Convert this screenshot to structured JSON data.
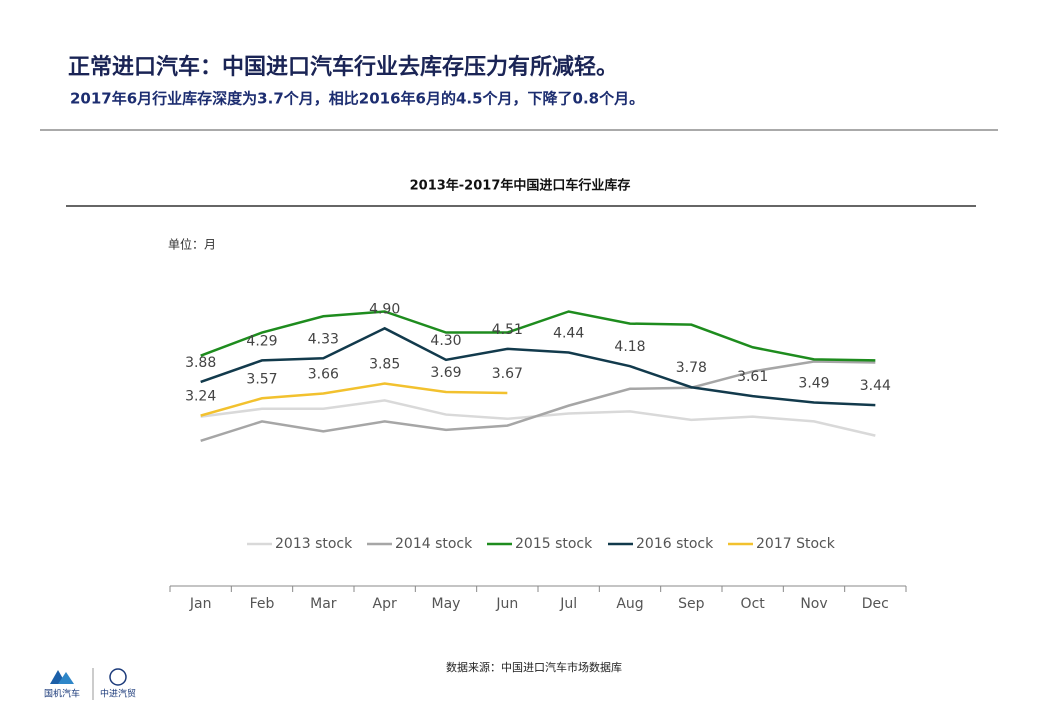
{
  "header": {
    "title": "正常进口汽车：中国进口汽车行业去库存压力有所减轻。",
    "subtitle": "2017年6月行业库存深度为3.7个月，相比2016年6月的4.5个月，下降了0.8个月。"
  },
  "chart_data": {
    "type": "line",
    "title": "2013年-2017年中国进口车行业库存",
    "unit_label": "单位：月",
    "categories": [
      "Jan",
      "Feb",
      "Mar",
      "Apr",
      "May",
      "Jun",
      "Jul",
      "Aug",
      "Sep",
      "Oct",
      "Nov",
      "Dec"
    ],
    "ylim": [
      0,
      5.8
    ],
    "grid": false,
    "legend": "bottom",
    "series": [
      {
        "name": "2013 stock",
        "color": "#d9d9d9",
        "values": [
          3.22,
          3.37,
          3.37,
          3.53,
          3.26,
          3.18,
          3.28,
          3.32,
          3.16,
          3.22,
          3.13,
          2.86
        ]
      },
      {
        "name": "2014 stock",
        "color": "#a6a6a6",
        "values": [
          2.76,
          3.13,
          2.94,
          3.13,
          2.97,
          3.05,
          3.43,
          3.75,
          3.77,
          4.08,
          4.27,
          4.25
        ]
      },
      {
        "name": "2015 stock",
        "color": "#1e8c1e",
        "values": [
          4.38,
          4.82,
          5.13,
          5.22,
          4.82,
          4.82,
          5.22,
          4.99,
          4.97,
          4.54,
          4.31,
          4.29
        ]
      },
      {
        "name": "2016 stock",
        "color": "#123a4c",
        "values": [
          3.88,
          4.29,
          4.33,
          4.9,
          4.3,
          4.51,
          4.44,
          4.18,
          3.78,
          3.61,
          3.49,
          3.44
        ],
        "value_labels": [
          "3.88",
          "4.29",
          "4.33",
          "4.90",
          "4.30",
          "4.51",
          "4.44",
          "4.18",
          "3.78",
          "3.61",
          "3.49",
          "3.44"
        ]
      },
      {
        "name": "2017 Stock",
        "color": "#f2c12e",
        "values": [
          3.24,
          3.57,
          3.66,
          3.85,
          3.69,
          3.67,
          null,
          null,
          null,
          null,
          null,
          null
        ],
        "value_labels": [
          "3.24",
          "3.57",
          "3.66",
          "3.85",
          "3.69",
          "3.67",
          null,
          null,
          null,
          null,
          null,
          null
        ]
      }
    ]
  },
  "footer": {
    "source": "数据来源：中国进口汽车市场数据库",
    "logo_left": "国机汽车",
    "logo_right": "中进汽贸"
  }
}
